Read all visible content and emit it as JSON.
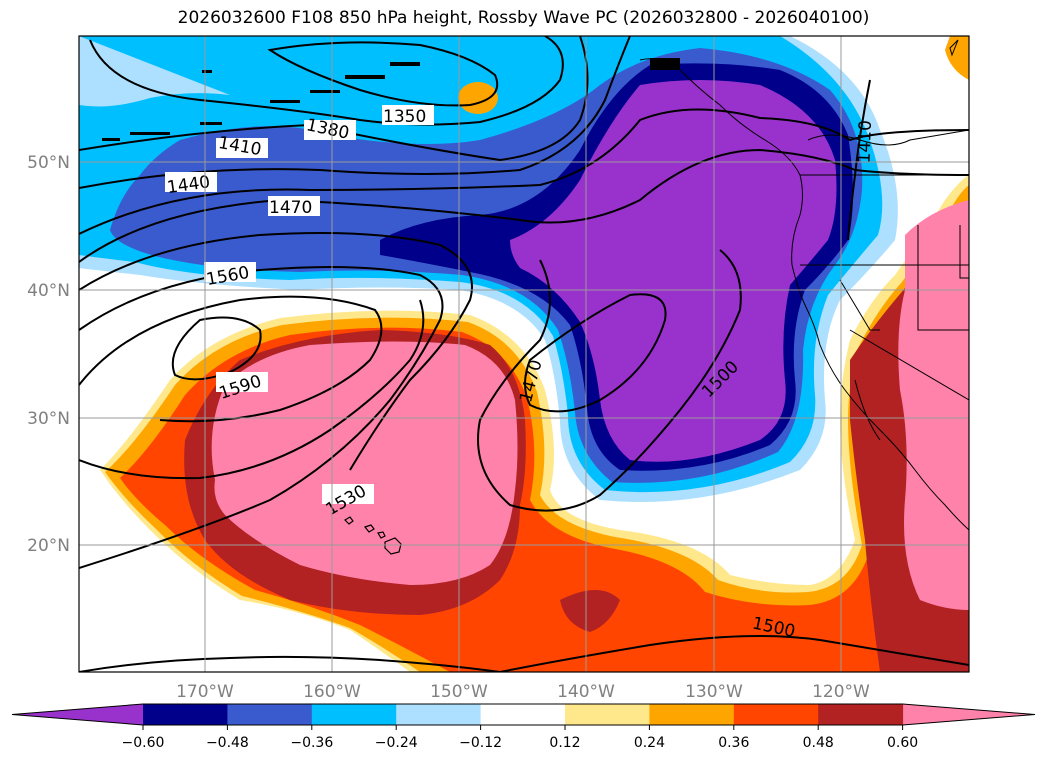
{
  "title": "2026032600 F108 850 hPa height, Rossby Wave PC (2026032800 - 2026040100)",
  "lat_labels": [
    "50°N",
    "40°N",
    "30°N",
    "20°N"
  ],
  "lon_labels": [
    "170°W",
    "160°W",
    "150°W",
    "140°W",
    "130°W",
    "120°W"
  ],
  "colorbar": {
    "colors": [
      "#9932CC",
      "#00008B",
      "#3A5BCE",
      "#00BFFF",
      "#ADDFFF",
      "#FFFFFF",
      "#FFE88C",
      "#FFA500",
      "#FF4500",
      "#B22222",
      "#FF82AB"
    ],
    "tick_labels": [
      "−0.60",
      "−0.48",
      "−0.36",
      "−0.24",
      "−0.12",
      "0.12",
      "0.24",
      "0.36",
      "0.48",
      "0.60"
    ]
  },
  "contour_labels": [
    "1350",
    "1380",
    "1410",
    "1440",
    "1470",
    "1560",
    "1590",
    "1530",
    "1470",
    "1500",
    "1500",
    "1410"
  ]
}
